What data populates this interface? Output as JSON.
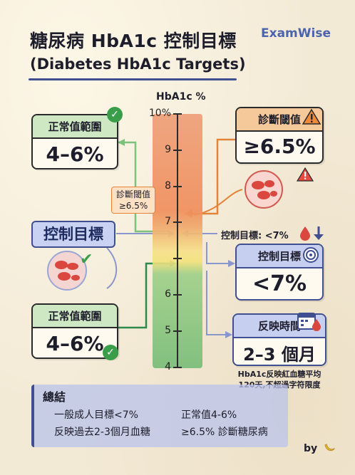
{
  "title": {
    "zh": "糖尿病 HbA1c 控制目標",
    "en": "(Diabetes HbA1c Targets)"
  },
  "brand": "ExamWise",
  "axis": {
    "title": "HbA1c %",
    "ticks": [
      "10%",
      "9",
      "8",
      "7",
      "6",
      "5",
      "4"
    ]
  },
  "normal_top": {
    "header": "正常值範圍",
    "value": "4–6%"
  },
  "normal_bottom": {
    "header": "正常值範圍",
    "value": "4–6%"
  },
  "diagnosis_card": {
    "header": "診斷閾值",
    "value": "≥6.5%"
  },
  "diagnosis_tag": {
    "line1": "診斷閾值",
    "line2": "≥6.5%"
  },
  "control_label": "控制目標",
  "control_note": "控制目標: <7%",
  "control_card": {
    "header": "控制目標",
    "value": "<7%"
  },
  "reflect_card": {
    "header": "反映時間",
    "value": "2–3 個月"
  },
  "reflect_note": {
    "line1": "HbA1c反映紅血糖平均",
    "line2": "120天,不超過字符限度"
  },
  "summary": {
    "heading": "總結",
    "items": [
      "一般成人目標<7%",
      "正常值4-6%",
      "反映過去2-3個月血糖",
      "≥6.5% 診斷糖尿病"
    ]
  },
  "byline": "by",
  "icons": {
    "check": "check-circle-icon",
    "warning": "warning-triangle-icon",
    "blood_drop": "blood-drop-icon",
    "down_arrow": "down-arrow-icon",
    "target": "target-icon",
    "calendar": "calendar-icon",
    "blood_cells": "blood-cells-icon",
    "banana": "banana-icon"
  },
  "colors": {
    "green": "#3a9d4a",
    "orange": "#e2853a",
    "blue": "#3f4f8f",
    "red": "#d9473f"
  }
}
